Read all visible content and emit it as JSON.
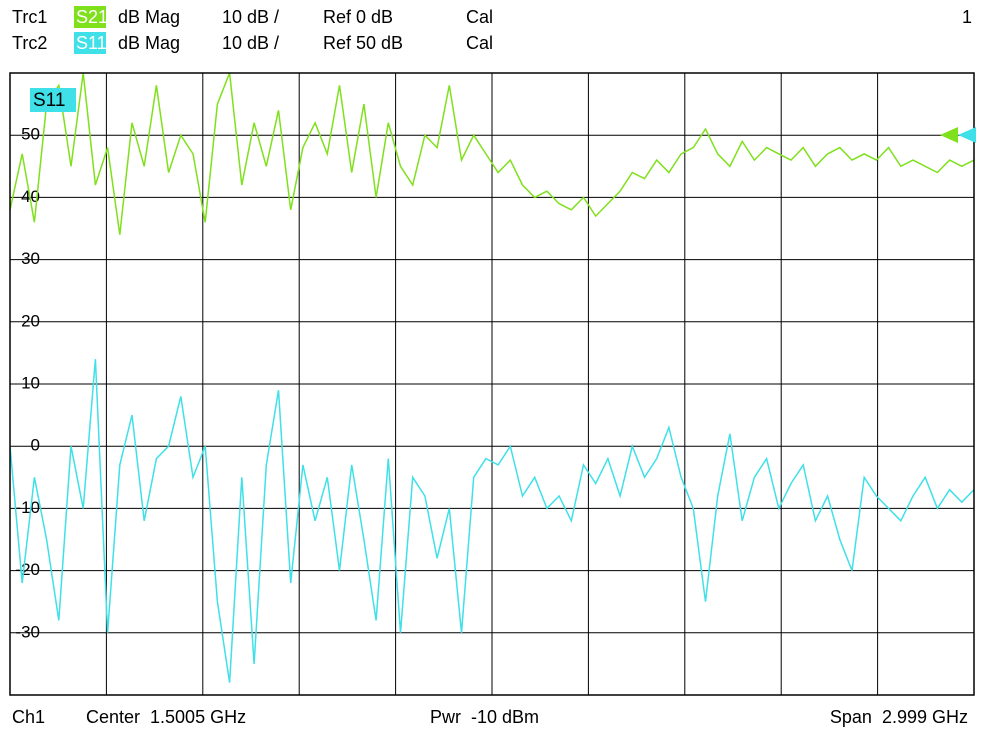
{
  "header": {
    "rows": [
      {
        "trace": "Trc1",
        "param": "S21",
        "format": "dB Mag",
        "scale": "10 dB /",
        "ref": "Ref 0 dB",
        "cal": "Cal"
      },
      {
        "trace": "Trc2",
        "param": "S11",
        "format": "dB Mag",
        "scale": "10 dB /",
        "ref": "Ref 50 dB",
        "cal": "Cal"
      }
    ],
    "window": "1"
  },
  "chart_data": {
    "type": "line",
    "label": "S11",
    "ylim": [
      -40,
      60
    ],
    "yticks": [
      50,
      40,
      30,
      20,
      10,
      0,
      -10,
      -20,
      -30
    ],
    "grid": true,
    "series": [
      {
        "name": "S21",
        "color": "#7fe01c",
        "values": [
          38,
          47,
          36,
          55,
          58,
          45,
          60,
          42,
          48,
          34,
          52,
          45,
          58,
          44,
          50,
          47,
          36,
          55,
          60,
          42,
          52,
          45,
          54,
          38,
          48,
          52,
          47,
          58,
          44,
          55,
          40,
          52,
          45,
          42,
          50,
          48,
          58,
          46,
          50,
          47,
          44,
          46,
          42,
          40,
          41,
          39,
          38,
          40,
          37,
          39,
          41,
          44,
          43,
          46,
          44,
          47,
          48,
          51,
          47,
          45,
          49,
          46,
          48,
          47,
          46,
          48,
          45,
          47,
          48,
          46,
          47,
          46,
          48,
          45,
          46,
          45,
          44,
          46,
          45,
          46
        ]
      },
      {
        "name": "S11",
        "color": "#3fe0e8",
        "values": [
          0,
          -22,
          -5,
          -15,
          -28,
          0,
          -10,
          14,
          -30,
          -3,
          5,
          -12,
          -2,
          0,
          8,
          -5,
          0,
          -25,
          -38,
          -5,
          -35,
          -3,
          9,
          -22,
          -3,
          -12,
          -5,
          -20,
          -3,
          -15,
          -28,
          -2,
          -30,
          -5,
          -8,
          -18,
          -10,
          -30,
          -5,
          -2,
          -3,
          0,
          -8,
          -5,
          -10,
          -8,
          -12,
          -3,
          -6,
          -2,
          -8,
          0,
          -5,
          -2,
          3,
          -5,
          -10,
          -25,
          -8,
          2,
          -12,
          -5,
          -2,
          -10,
          -6,
          -3,
          -12,
          -8,
          -15,
          -20,
          -5,
          -8,
          -10,
          -12,
          -8,
          -5,
          -10,
          -7,
          -9,
          -7
        ]
      }
    ]
  },
  "footer": {
    "channel": "Ch1",
    "center": "Center  1.5005 GHz",
    "power": "Pwr  -10 dBm",
    "span": "Span  2.999 GHz"
  }
}
